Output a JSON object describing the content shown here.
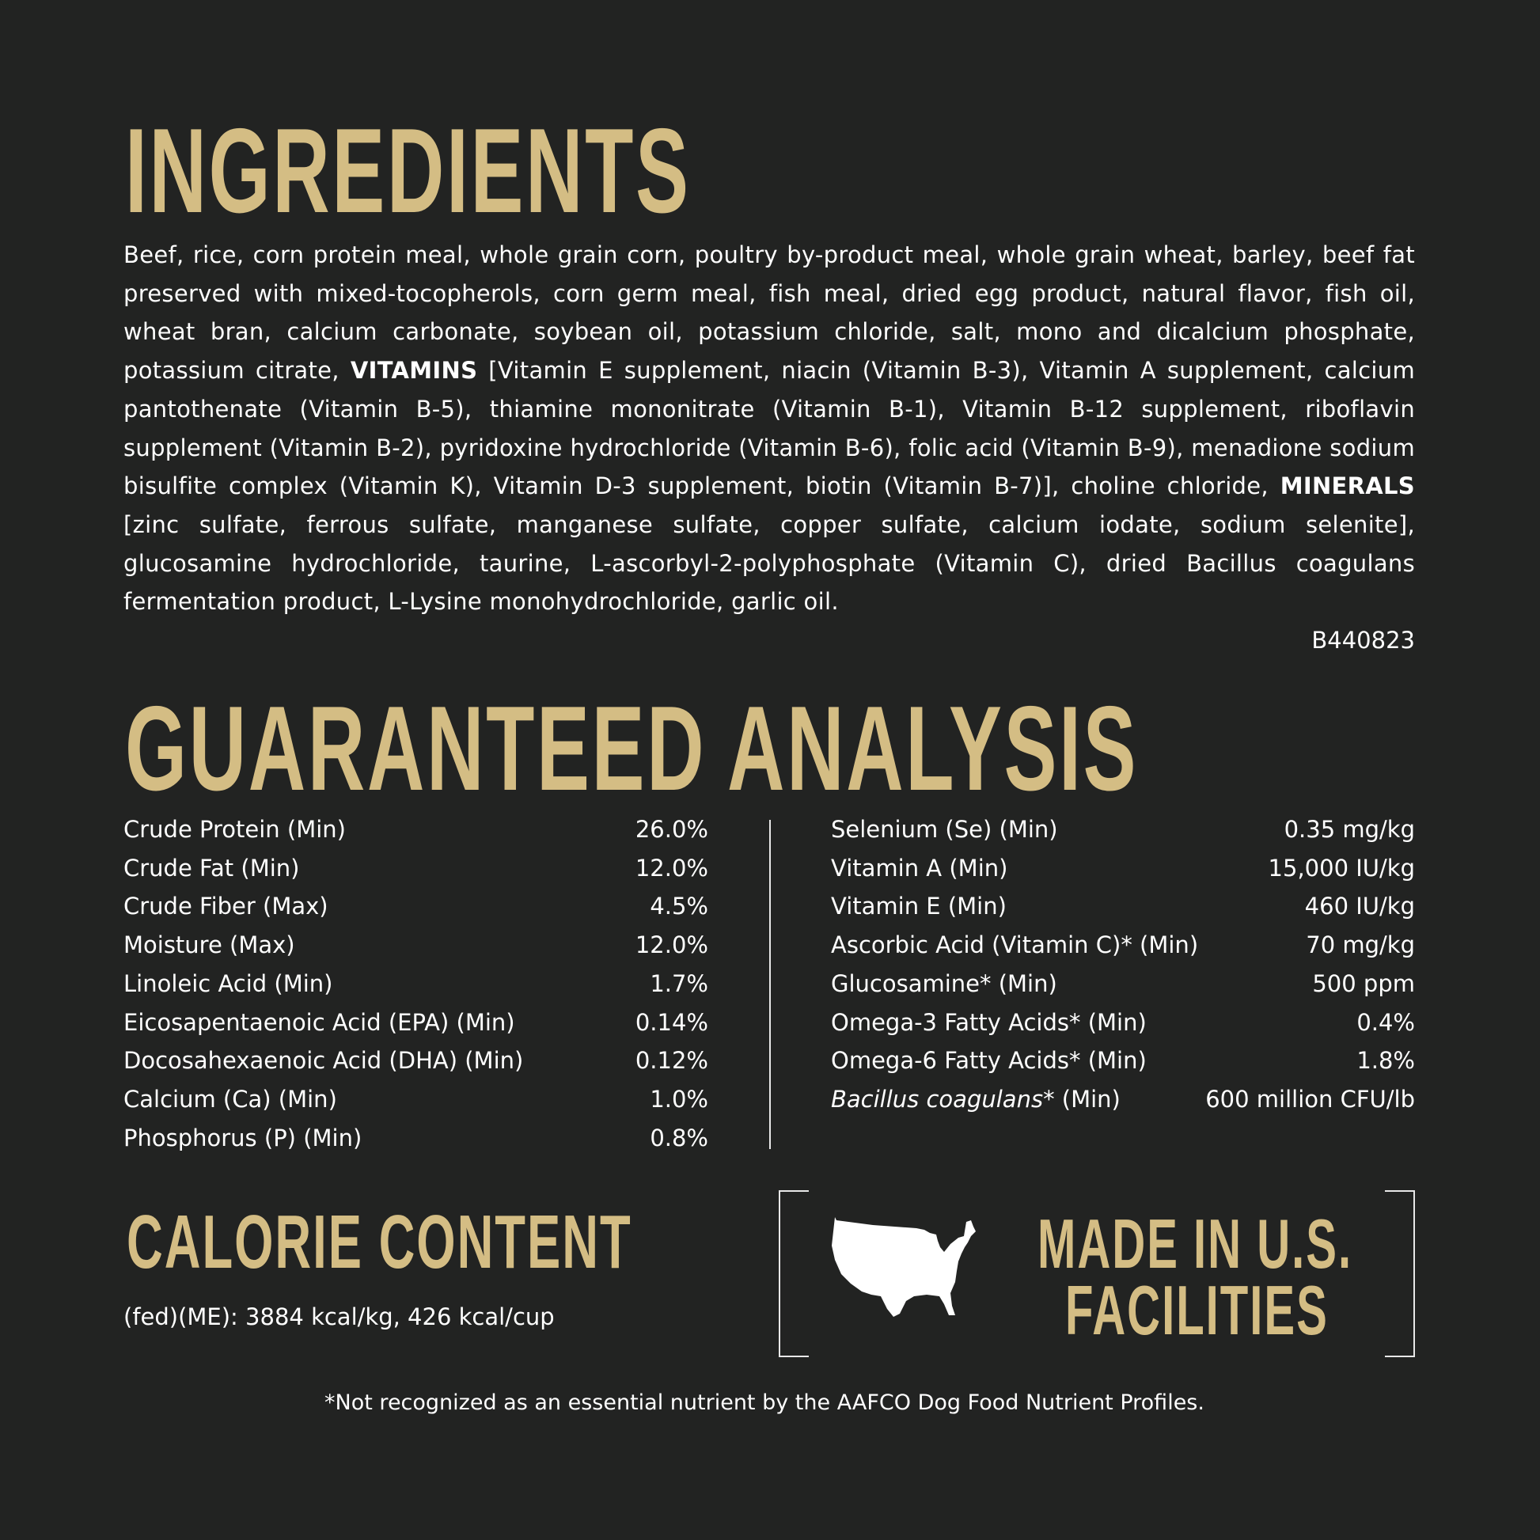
{
  "colors": {
    "background": "#222322",
    "accent_gold": "#d4bd84",
    "text": "#ffffff"
  },
  "ingredients": {
    "title": "INGREDIENTS",
    "text_1": "Beef, rice, corn protein meal, whole grain corn, poultry by-product meal, whole grain wheat, barley, beef fat preserved with mixed-tocopherols, corn germ meal, fish meal, dried egg product, natural flavor, fish oil, wheat bran, calcium carbonate, soybean oil, potassium chloride, salt, mono and dicalcium phosphate, potassium citrate, ",
    "vitamins_label": "VITAMINS",
    "text_2": " [Vitamin E supplement, niacin (Vitamin B-3), Vitamin A supplement, calcium pantothenate (Vitamin B-5), thiamine mononitrate (Vitamin B-1), Vitamin B-12 supplement, riboflavin supplement (Vitamin B-2), pyridoxine hydrochloride (Vitamin B-6), folic acid (Vitamin B-9), menadione sodium bisulfite complex (Vitamin K), Vitamin D-3 supplement, biotin (Vitamin B-7)], choline chloride, ",
    "minerals_label": "MINERALS",
    "text_3": " [zinc sulfate, ferrous sulfate, manganese sulfate, copper sulfate, calcium iodate, sodium selenite], glucosamine hydrochloride, taurine, L-ascorbyl-2-polyphosphate (Vitamin C), dried Bacillus coagulans fermentation product, L-Lysine monohydrochloride, garlic oil.",
    "code": "B440823"
  },
  "analysis": {
    "title": "GUARANTEED ANALYSIS",
    "left": [
      {
        "name": "Crude Protein (Min)",
        "value": "26.0%"
      },
      {
        "name": "Crude Fat (Min)",
        "value": "12.0%"
      },
      {
        "name": "Crude Fiber (Max)",
        "value": "4.5%"
      },
      {
        "name": "Moisture (Max)",
        "value": "12.0%"
      },
      {
        "name": "Linoleic Acid (Min)",
        "value": "1.7%"
      },
      {
        "name": "Eicosapentaenoic Acid (EPA) (Min)",
        "value": "0.14%"
      },
      {
        "name": "Docosahexaenoic Acid (DHA) (Min)",
        "value": "0.12%"
      },
      {
        "name": "Calcium (Ca) (Min)",
        "value": "1.0%"
      },
      {
        "name": "Phosphorus (P) (Min)",
        "value": "0.8%"
      }
    ],
    "right": [
      {
        "name": "Selenium (Se) (Min)",
        "value": "0.35 mg/kg"
      },
      {
        "name": "Vitamin A (Min)",
        "value": "15,000 IU/kg"
      },
      {
        "name": "Vitamin E (Min)",
        "value": "460 IU/kg"
      },
      {
        "name": "Ascorbic Acid (Vitamin C)* (Min)",
        "value": "70 mg/kg"
      },
      {
        "name": "Glucosamine* (Min)",
        "value": "500 ppm"
      },
      {
        "name": "Omega-3 Fatty Acids* (Min)",
        "value": "0.4%"
      },
      {
        "name": "Omega-6 Fatty Acids* (Min)",
        "value": "1.8%"
      }
    ],
    "bacillus": {
      "name_italic": "Bacillus coagulans",
      "name_suffix": "* (Min)",
      "value": "600 million CFU/lb"
    }
  },
  "calorie": {
    "title": "CALORIE CONTENT",
    "text": "(fed)(ME): 3884 kcal/kg, 426 kcal/cup"
  },
  "made_in": {
    "icon": "usa-map-icon",
    "line1": "MADE IN U.S.",
    "line2": "FACILITIES"
  },
  "footnote": "*Not recognized as an essential nutrient by the AAFCO Dog Food Nutrient Profiles."
}
